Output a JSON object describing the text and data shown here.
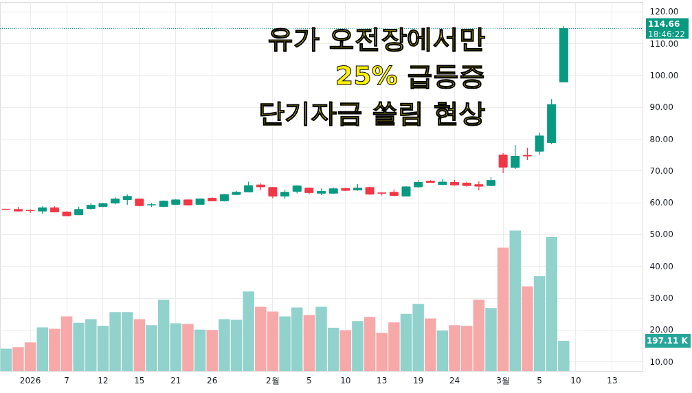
{
  "chart_data": {
    "type": "candlestick",
    "title": "유가 오전장에서만\n25% 급등증\n단기자금 쏠림 현상",
    "categories": [
      null,
      null,
      "2026",
      null,
      null,
      "7",
      null,
      null,
      "12",
      null,
      null,
      "15",
      null,
      null,
      "21",
      null,
      null,
      "26",
      null,
      null,
      null,
      null,
      "2월",
      null,
      null,
      "5",
      null,
      null,
      "10",
      null,
      null,
      "13",
      null,
      null,
      "19",
      null,
      null,
      "24",
      null,
      null,
      null,
      "3월",
      null,
      null,
      "5",
      null,
      null,
      "10",
      null,
      null,
      "13",
      null,
      null
    ],
    "ohlc": [
      [
        57.9,
        58.0,
        57.6,
        57.8
      ],
      [
        57.8,
        58.6,
        57.2,
        57.3
      ],
      [
        57.5,
        57.8,
        56.7,
        57.4
      ],
      [
        57.3,
        58.8,
        56.4,
        58.3
      ],
      [
        58.3,
        58.8,
        56.9,
        57.0
      ],
      [
        57.0,
        57.2,
        55.8,
        55.8
      ],
      [
        56.1,
        58.7,
        56.0,
        57.8
      ],
      [
        58.1,
        59.8,
        57.7,
        59.1
      ],
      [
        58.7,
        59.8,
        58.5,
        59.6
      ],
      [
        59.8,
        61.6,
        59.4,
        61.1
      ],
      [
        60.9,
        62.5,
        59.2,
        61.9
      ],
      [
        61.1,
        61.2,
        58.8,
        59.0
      ],
      [
        59.2,
        59.8,
        58.6,
        59.3
      ],
      [
        58.7,
        60.6,
        58.6,
        60.4
      ],
      [
        59.4,
        61.0,
        59.2,
        60.8
      ],
      [
        60.8,
        61.0,
        59.0,
        59.2
      ],
      [
        59.4,
        61.3,
        59.4,
        61.1
      ],
      [
        61.3,
        61.7,
        60.4,
        60.5
      ],
      [
        60.5,
        62.7,
        60.3,
        62.5
      ],
      [
        62.5,
        63.6,
        62.3,
        63.2
      ],
      [
        63.3,
        66.5,
        63.2,
        65.3
      ],
      [
        65.5,
        66.0,
        63.8,
        64.9
      ],
      [
        64.7,
        64.8,
        61.3,
        62.0
      ],
      [
        62.0,
        64.0,
        61.2,
        63.2
      ],
      [
        63.5,
        65.4,
        62.9,
        65.2
      ],
      [
        64.5,
        64.6,
        62.6,
        63.1
      ],
      [
        62.9,
        64.4,
        62.3,
        63.5
      ],
      [
        62.9,
        64.7,
        62.7,
        64.3
      ],
      [
        64.4,
        64.6,
        63.6,
        63.8
      ],
      [
        63.9,
        65.8,
        63.7,
        64.5
      ],
      [
        64.7,
        64.9,
        62.4,
        62.6
      ],
      [
        63.0,
        63.2,
        62.2,
        62.9
      ],
      [
        63.2,
        64.1,
        62.0,
        62.2
      ],
      [
        62.0,
        65.1,
        61.9,
        64.9
      ],
      [
        64.9,
        67.0,
        64.7,
        66.3
      ],
      [
        66.7,
        67.0,
        66.2,
        66.3
      ],
      [
        65.6,
        67.3,
        65.5,
        66.4
      ],
      [
        66.3,
        67.1,
        65.3,
        65.5
      ],
      [
        66.1,
        66.5,
        65.0,
        65.3
      ],
      [
        65.6,
        66.7,
        63.8,
        65.1
      ],
      [
        65.3,
        67.9,
        65.1,
        66.9
      ],
      [
        74.9,
        75.5,
        69.2,
        71.1
      ],
      [
        71.0,
        78.0,
        70.5,
        74.5
      ],
      [
        74.8,
        77.2,
        73.3,
        74.6
      ],
      [
        76.1,
        82.0,
        75.0,
        80.9
      ],
      [
        78.8,
        92.5,
        78.3,
        90.8
      ],
      [
        97.9,
        115.5,
        97.9,
        114.66
      ],
      null,
      null,
      null,
      null,
      null,
      null
    ],
    "colors": [
      "#f23645",
      "#f23645",
      "#f23645",
      "#089981",
      "#f23645",
      "#f23645",
      "#089981",
      "#089981",
      "#089981",
      "#089981",
      "#089981",
      "#f23645",
      "#089981",
      "#089981",
      "#089981",
      "#f23645",
      "#089981",
      "#f23645",
      "#089981",
      "#089981",
      "#089981",
      "#f23645",
      "#f23645",
      "#089981",
      "#089981",
      "#f23645",
      "#089981",
      "#089981",
      "#f23645",
      "#089981",
      "#f23645",
      "#f23645",
      "#f23645",
      "#089981",
      "#089981",
      "#f23645",
      "#089981",
      "#f23645",
      "#f23645",
      "#f23645",
      "#089981",
      "#f23645",
      "#089981",
      "#f23645",
      "#089981",
      "#089981",
      "#089981",
      null,
      null,
      null,
      null,
      null,
      null
    ],
    "series": [
      {
        "type": "bar",
        "values": [
          14.0,
          14.5,
          16.0,
          20.7,
          20.3,
          24.2,
          22.2,
          23.3,
          21.2,
          25.5,
          25.5,
          23.3,
          21.4,
          29.4,
          22.0,
          21.8,
          20.0,
          19.9,
          23.3,
          23.1,
          32.0,
          27.2,
          25.7,
          24.2,
          27.0,
          24.6,
          27.2,
          20.6,
          19.8,
          22.7,
          24.0,
          19.0,
          22.3,
          25.0,
          28.1,
          23.5,
          19.7,
          21.4,
          21.2,
          29.4,
          26.8,
          45.8,
          51.2,
          33.6,
          36.8,
          49.1,
          16.5,
          null,
          null,
          null,
          null,
          null,
          null
        ],
        "colors": [
          "#92d2cc",
          "#f7a9a9",
          "#f7a9a9",
          "#92d2cc",
          "#f7a9a9",
          "#f7a9a9",
          "#92d2cc",
          "#92d2cc",
          "#92d2cc",
          "#92d2cc",
          "#92d2cc",
          "#f7a9a9",
          "#92d2cc",
          "#92d2cc",
          "#92d2cc",
          "#f7a9a9",
          "#92d2cc",
          "#f7a9a9",
          "#92d2cc",
          "#92d2cc",
          "#92d2cc",
          "#f7a9a9",
          "#f7a9a9",
          "#92d2cc",
          "#92d2cc",
          "#f7a9a9",
          "#92d2cc",
          "#92d2cc",
          "#f7a9a9",
          "#92d2cc",
          "#f7a9a9",
          "#f7a9a9",
          "#f7a9a9",
          "#92d2cc",
          "#92d2cc",
          "#f7a9a9",
          "#92d2cc",
          "#f7a9a9",
          "#f7a9a9",
          "#f7a9a9",
          "#92d2cc",
          "#f7a9a9",
          "#92d2cc",
          "#f7a9a9",
          "#92d2cc",
          "#92d2cc",
          "#92d2cc",
          null,
          null,
          null,
          null,
          null,
          null
        ]
      }
    ],
    "ylim": [
      7,
      123
    ],
    "yticks": [
      {
        "value": 10,
        "label": "10.00"
      },
      {
        "value": 20,
        "label": "20.00"
      },
      {
        "value": 30,
        "label": "30.00"
      },
      {
        "value": 40,
        "label": "40.00"
      },
      {
        "value": 50,
        "label": "50.00"
      },
      {
        "value": 60,
        "label": "60.00"
      },
      {
        "value": 70,
        "label": "70.00"
      },
      {
        "value": 80,
        "label": "80.00"
      },
      {
        "value": 90,
        "label": "90.00"
      },
      {
        "value": 100,
        "label": "100.00"
      },
      {
        "value": 110,
        "label": "110.00"
      },
      {
        "value": 120,
        "label": "120.00"
      }
    ],
    "ref_lines": [
      {
        "axis": "y",
        "value": 114.66,
        "label": "114.66",
        "color": "#089981",
        "line_style": "dotted"
      }
    ],
    "annotations": [
      "18:46:22",
      "197.11 K"
    ],
    "grid": true
  }
}
